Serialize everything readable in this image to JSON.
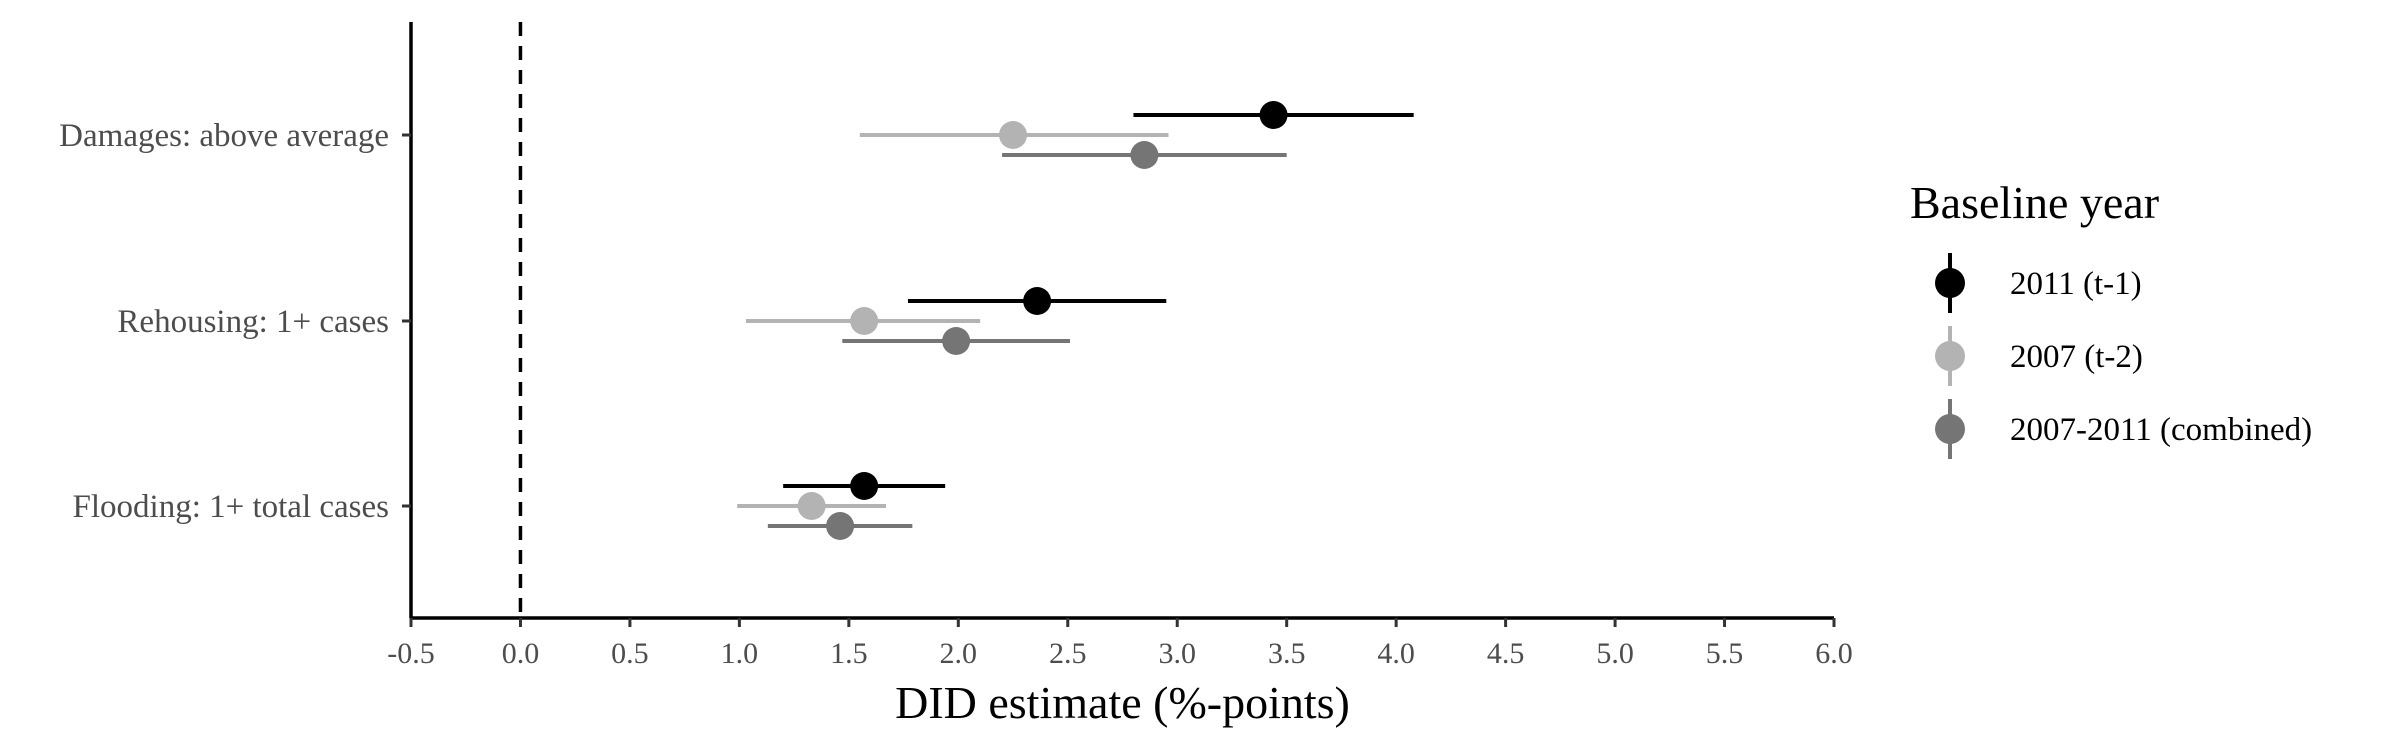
{
  "chart_data": {
    "type": "scatter",
    "subtype": "forest-plot",
    "title": "",
    "xlabel": "DID estimate (%-points)",
    "ylabel": "",
    "xlim": [
      -0.5,
      6.0
    ],
    "x_ticks": [
      "-0.5",
      "0.0",
      "0.5",
      "1.0",
      "1.5",
      "2.0",
      "2.5",
      "3.0",
      "3.5",
      "4.0",
      "4.5",
      "5.0",
      "5.5",
      "6.0"
    ],
    "reference_line": {
      "x": 0.0,
      "style": "dashed"
    },
    "categories": [
      "Damages: above average",
      "Rehousing: 1+ cases",
      "Flooding: 1+ total cases"
    ],
    "legend": {
      "title": "Baseline year",
      "position": "right"
    },
    "series": [
      {
        "name": "2011 (t-1)",
        "color": "#000000",
        "points": [
          {
            "category": "Damages: above average",
            "estimate": 3.44,
            "low": 2.8,
            "high": 4.08
          },
          {
            "category": "Rehousing: 1+ cases",
            "estimate": 2.36,
            "low": 1.77,
            "high": 2.95
          },
          {
            "category": "Flooding: 1+ total cases",
            "estimate": 1.57,
            "low": 1.2,
            "high": 1.94
          }
        ]
      },
      {
        "name": "2007 (t-2)",
        "color": "#b3b3b3",
        "points": [
          {
            "category": "Damages: above average",
            "estimate": 2.25,
            "low": 1.55,
            "high": 2.96
          },
          {
            "category": "Rehousing: 1+ cases",
            "estimate": 1.57,
            "low": 1.03,
            "high": 2.1
          },
          {
            "category": "Flooding: 1+ total cases",
            "estimate": 1.33,
            "low": 0.99,
            "high": 1.67
          }
        ]
      },
      {
        "name": "2007-2011 (combined)",
        "color": "#757575",
        "points": [
          {
            "category": "Damages: above average",
            "estimate": 2.85,
            "low": 2.2,
            "high": 3.5
          },
          {
            "category": "Rehousing: 1+ cases",
            "estimate": 1.99,
            "low": 1.47,
            "high": 2.51
          },
          {
            "category": "Flooding: 1+ total cases",
            "estimate": 1.46,
            "low": 1.13,
            "high": 1.79
          }
        ]
      }
    ],
    "grid": false
  }
}
